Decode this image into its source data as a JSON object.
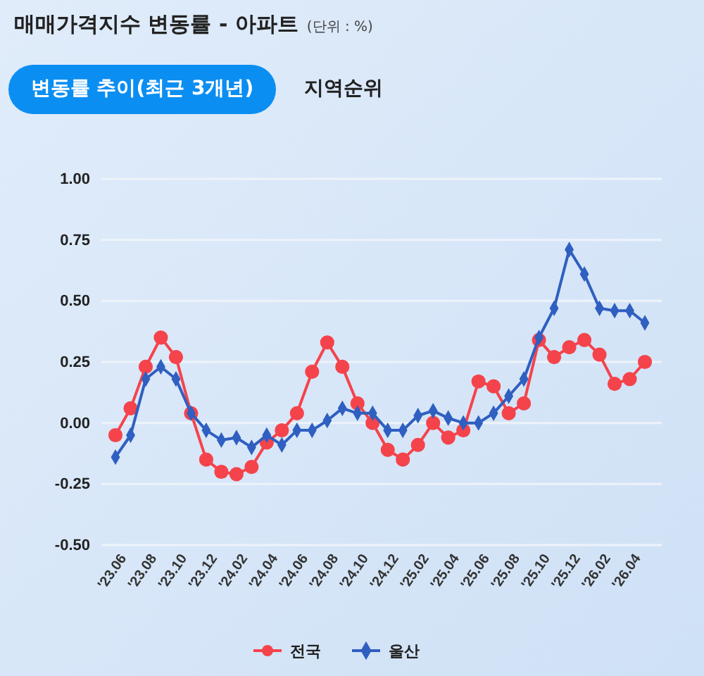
{
  "chart_data": {
    "type": "line",
    "title": "매매가격지수 변동률 - 아파트",
    "subtitle": "(단위 : %)",
    "annotations": [
      "변동률 추이(최근 3개년)",
      "지역순위"
    ],
    "categories": [
      "'23.06",
      null,
      "'23.08",
      null,
      "'23.10",
      null,
      "'23.12",
      null,
      "'24.02",
      null,
      "'24.04",
      null,
      "'24.06",
      null,
      "'24.08",
      null,
      "'24.10",
      null,
      "'24.12",
      null,
      "'25.02",
      null,
      "'25.04",
      null,
      "'25.06",
      null,
      "'25.08",
      null,
      "'25.10",
      null,
      "'25.12",
      null,
      "'26.02",
      null,
      "'26.04",
      null
    ],
    "series": [
      {
        "name": "전국",
        "color": "#f5434b",
        "marker": "circle",
        "values": [
          -0.05,
          0.06,
          0.23,
          0.35,
          0.27,
          0.04,
          -0.15,
          -0.2,
          -0.21,
          -0.18,
          -0.08,
          -0.03,
          0.04,
          0.21,
          0.33,
          0.23,
          0.08,
          0.0,
          -0.11,
          -0.15,
          -0.09,
          0.0,
          -0.06,
          -0.03,
          0.17,
          0.15,
          0.04,
          0.08,
          0.34,
          0.27,
          0.31,
          0.34,
          0.28,
          0.16,
          0.18,
          0.25
        ]
      },
      {
        "name": "울산",
        "color": "#2f5fc0",
        "marker": "diamond",
        "values": [
          -0.14,
          -0.05,
          0.18,
          0.23,
          0.18,
          0.04,
          -0.03,
          -0.07,
          -0.06,
          -0.1,
          -0.05,
          -0.09,
          -0.03,
          -0.03,
          0.01,
          0.06,
          0.04,
          0.04,
          -0.03,
          -0.03,
          0.03,
          0.05,
          0.02,
          0.0,
          0.0,
          0.04,
          0.11,
          0.18,
          0.35,
          0.47,
          0.71,
          0.61,
          0.47,
          0.46,
          0.46,
          0.41
        ]
      }
    ],
    "ylim": [
      -0.5,
      1.0
    ],
    "yticks": [
      {
        "value": -0.5,
        "label": "-0.50"
      },
      {
        "value": -0.25,
        "label": "-0.25"
      },
      {
        "value": 0,
        "label": "0.00"
      },
      {
        "value": 0.25,
        "label": "0.25"
      },
      {
        "value": 0.5,
        "label": "0.50"
      },
      {
        "value": 0.75,
        "label": "0.75"
      },
      {
        "value": 1.0,
        "label": "1.00"
      }
    ],
    "grid": "y",
    "legend": "bottom",
    "line_style": "solid"
  }
}
